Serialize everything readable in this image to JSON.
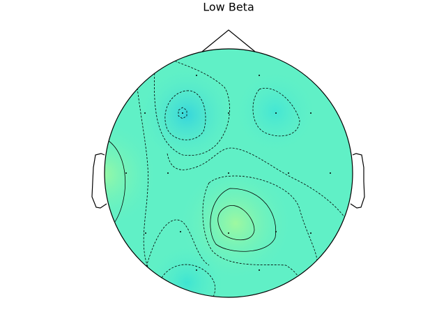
{
  "chart_data": {
    "type": "topomap",
    "title": "Low Beta"
  }
}
